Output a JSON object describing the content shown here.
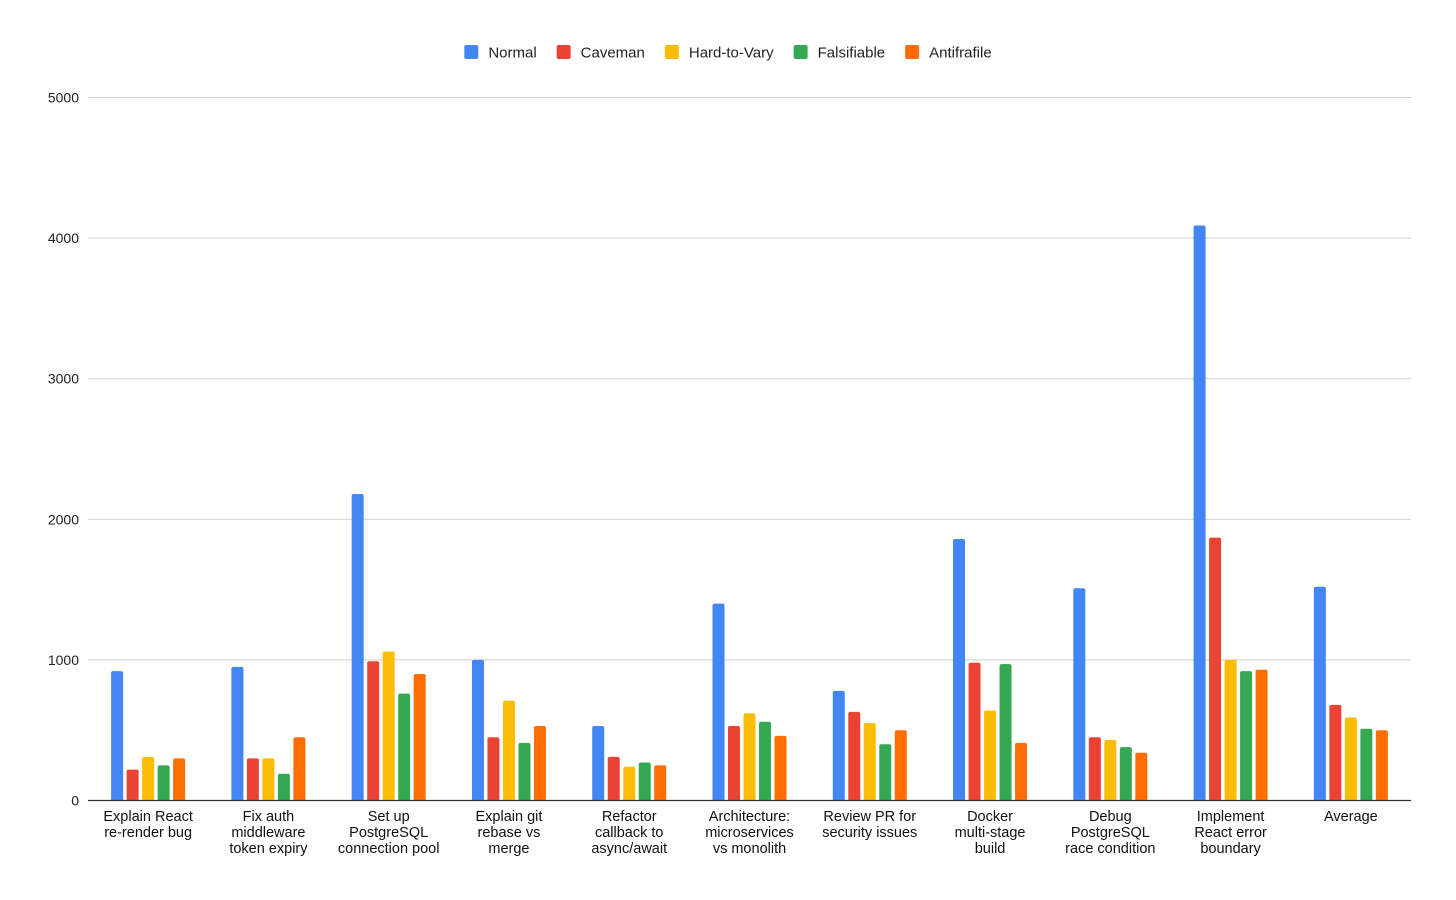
{
  "chart_data": {
    "type": "bar",
    "title": "",
    "xlabel": "",
    "ylabel": "",
    "ylim": [
      0,
      5000
    ],
    "yticks": [
      0,
      1000,
      2000,
      3000,
      4000,
      5000
    ],
    "grid": true,
    "legend_position": "top",
    "categories": [
      [
        "Explain React",
        "re-render bug"
      ],
      [
        "Fix auth",
        "middleware",
        "token expiry"
      ],
      [
        "Set up",
        "PostgreSQL",
        "connection pool"
      ],
      [
        "Explain git",
        "rebase vs",
        "merge"
      ],
      [
        "Refactor",
        "callback to",
        "async/await"
      ],
      [
        "Architecture:",
        "microservices",
        "vs monolith"
      ],
      [
        "Review PR for",
        "security issues"
      ],
      [
        "Docker",
        "multi-stage",
        "build"
      ],
      [
        "Debug",
        "PostgreSQL",
        "race condition"
      ],
      [
        "Implement",
        "React error",
        "boundary"
      ],
      [
        "Average"
      ]
    ],
    "series": [
      {
        "name": "Normal",
        "color": "#4285F4",
        "values": [
          920,
          950,
          2180,
          1000,
          530,
          1400,
          780,
          1860,
          1510,
          4090,
          1520
        ]
      },
      {
        "name": "Caveman",
        "color": "#EA4335",
        "values": [
          220,
          300,
          990,
          450,
          310,
          530,
          630,
          980,
          450,
          1870,
          680
        ]
      },
      {
        "name": "Hard-to-Vary",
        "color": "#FBBC04",
        "values": [
          310,
          300,
          1060,
          710,
          240,
          620,
          550,
          640,
          430,
          1000,
          590
        ]
      },
      {
        "name": "Falsifiable",
        "color": "#34A853",
        "values": [
          250,
          190,
          760,
          410,
          270,
          560,
          400,
          970,
          380,
          920,
          510
        ]
      },
      {
        "name": "Antifrafile",
        "color": "#FF6D01",
        "values": [
          300,
          450,
          900,
          530,
          250,
          460,
          500,
          410,
          340,
          930,
          500
        ]
      }
    ]
  }
}
